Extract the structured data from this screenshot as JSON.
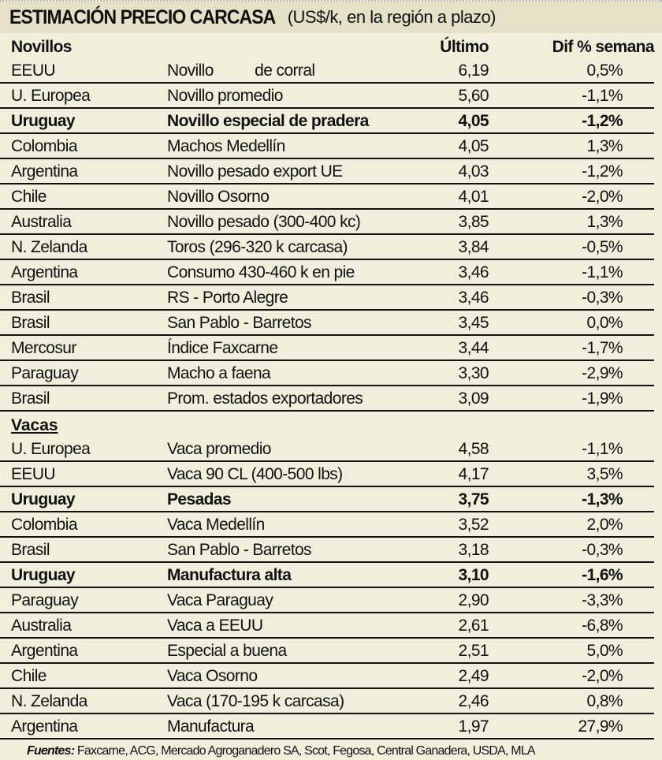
{
  "title": {
    "main": "ESTIMACIÓN PRECIO CARCASA",
    "sub": "(US$/k, en la región a plazo)"
  },
  "header": {
    "section": "Novillos",
    "col_last": "Último",
    "col_diff": "Dif % semana"
  },
  "novillos": [
    {
      "country": "EEUU",
      "desc": "Novillo          de corral",
      "last": "6,19",
      "diff": "0,5%"
    },
    {
      "country": "U. Europea",
      "desc": "Novillo promedio",
      "last": "5,60",
      "diff": "-1,1%"
    },
    {
      "country": "Uruguay",
      "desc": "Novillo especial de pradera",
      "last": "4,05",
      "diff": "-1,2%",
      "bold": true
    },
    {
      "country": "Colombia",
      "desc": "Machos Medellín",
      "last": "4,05",
      "diff": "1,3%"
    },
    {
      "country": "Argentina",
      "desc": "Novillo pesado export UE",
      "last": "4,03",
      "diff": "-1,2%"
    },
    {
      "country": "Chile",
      "desc": "Novillo Osorno",
      "last": "4,01",
      "diff": "-2,0%"
    },
    {
      "country": "Australia",
      "desc": "Novillo pesado (300-400 kc)",
      "last": "3,85",
      "diff": "1,3%"
    },
    {
      "country": "N. Zelanda",
      "desc": "Toros (296-320 k carcasa)",
      "last": "3,84",
      "diff": "-0,5%"
    },
    {
      "country": "Argentina",
      "desc": "Consumo 430-460 k en pie",
      "last": "3,46",
      "diff": "-1,1%"
    },
    {
      "country": "Brasil",
      "desc": "RS - Porto Alegre",
      "last": "3,46",
      "diff": "-0,3%"
    },
    {
      "country": "Brasil",
      "desc": "San Pablo - Barretos",
      "last": "3,45",
      "diff": "0,0%"
    },
    {
      "country": "Mercosur",
      "desc": "Índice Faxcarne",
      "last": "3,44",
      "diff": "-1,7%"
    },
    {
      "country": "Paraguay",
      "desc": "Macho a faena",
      "last": "3,30",
      "diff": "-2,9%"
    },
    {
      "country": "Brasil",
      "desc": "Prom. estados exportadores",
      "last": "3,09",
      "diff": "-1,9%"
    }
  ],
  "vacas_label": "Vacas",
  "vacas": [
    {
      "country": "U. Europea",
      "desc": "Vaca promedio",
      "last": "4,58",
      "diff": "-1,1%"
    },
    {
      "country": "EEUU",
      "desc": "Vaca 90 CL (400-500 lbs)",
      "last": "4,17",
      "diff": "3,5%"
    },
    {
      "country": "Uruguay",
      "desc": "Pesadas",
      "last": "3,75",
      "diff": "-1,3%",
      "bold": true
    },
    {
      "country": "Colombia",
      "desc": "Vaca Medellín",
      "last": "3,52",
      "diff": "2,0%"
    },
    {
      "country": "Brasil",
      "desc": "San Pablo - Barretos",
      "last": "3,18",
      "diff": "-0,3%"
    },
    {
      "country": "Uruguay",
      "desc": "Manufactura alta",
      "last": "3,10",
      "diff": "-1,6%",
      "bold": true
    },
    {
      "country": "Paraguay",
      "desc": "Vaca Paraguay",
      "last": "2,90",
      "diff": "-3,3%"
    },
    {
      "country": "Australia",
      "desc": "Vaca a EEUU",
      "last": "2,61",
      "diff": "-6,8%"
    },
    {
      "country": "Argentina",
      "desc": "Especial a buena",
      "last": "2,51",
      "diff": "5,0%"
    },
    {
      "country": "Chile",
      "desc": "Vaca Osorno",
      "last": "2,49",
      "diff": "-2,0%"
    },
    {
      "country": "N. Zelanda",
      "desc": "Vaca (170-195 k carcasa)",
      "last": "2,46",
      "diff": "0,8%"
    },
    {
      "country": "Argentina",
      "desc": "Manufactura",
      "last": "1,97",
      "diff": "27,9%"
    }
  ],
  "footer": {
    "label": "Fuentes:",
    "text": " Faxcarne, ACG, Mercado Agroganadero SA, Scot, Fegosa, Central Ganadera, USDA, MLA"
  }
}
